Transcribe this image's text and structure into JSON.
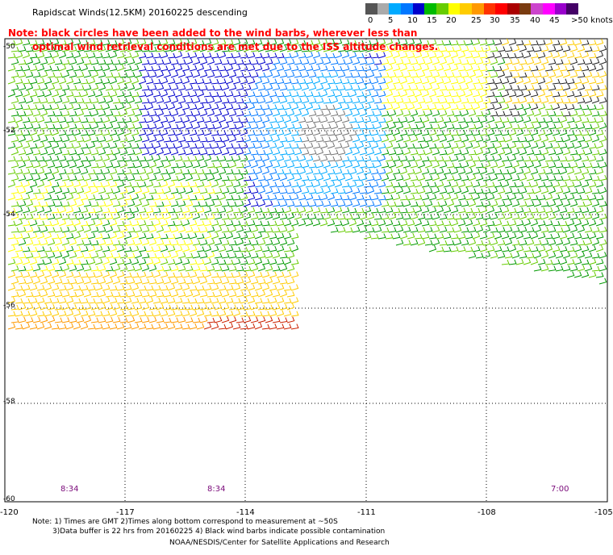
{
  "title": "Rapidscat Winds(12.5KM) 20160225 descending",
  "note_line1": "Note: black circles have been added to the wind barbs, wherever less than",
  "note_line2": "optimal wind retrieval conditions are met due to the ISS altitude changes.",
  "legend": {
    "colors": [
      "#555555",
      "#aaaaaa",
      "#00aaff",
      "#0077ff",
      "#0000cc",
      "#00bb00",
      "#66cc00",
      "#ffff00",
      "#ffcc00",
      "#ff9900",
      "#ff3300",
      "#ff0000",
      "#aa0000",
      "#7a3b10",
      "#cc44cc",
      "#ff00ff",
      "#9900cc",
      "#440066"
    ],
    "labels": [
      "0",
      "5",
      "10",
      "15",
      "20",
      "25",
      "30",
      "35",
      "40",
      "45",
      ">50 knots"
    ]
  },
  "lat_labels": [
    "-50",
    "-52",
    "-54",
    "-56",
    "-58",
    "-60"
  ],
  "lon_labels": [
    "-120",
    "-117",
    "-114",
    "-111",
    "-108",
    "-105"
  ],
  "time_labels": [
    "8:34",
    "8:34",
    "7:00"
  ],
  "footer": {
    "line1": "Note: 1) Times are GMT 2)Times along bottom correspond to measurement at ~50S",
    "line2": "3)Data buffer is 22 hrs from 20160225 4) Black wind barbs indicate possible contamination",
    "line3": "NOAA/NESDIS/Center for Satellite Applications and Research"
  }
}
